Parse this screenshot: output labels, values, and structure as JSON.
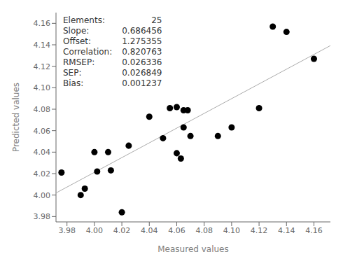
{
  "chart_data": {
    "type": "scatter",
    "xlabel": "Measured values",
    "ylabel": "Predicted values",
    "xlim": [
      3.972,
      4.172
    ],
    "ylim": [
      3.975,
      4.17
    ],
    "xticks": [
      3.98,
      {
        "value": 4.0,
        "label": "4.00"
      },
      4.02,
      4.04,
      4.06,
      4.08,
      {
        "value": 4.1,
        "label": "4.10"
      },
      4.12,
      4.14,
      4.16
    ],
    "yticks": [
      3.98,
      {
        "value": 4.0,
        "label": "4.00"
      },
      4.02,
      4.04,
      4.06,
      4.08,
      {
        "value": 4.1,
        "label": "4.10"
      },
      4.12,
      4.14,
      4.16
    ],
    "grid": false,
    "series": [
      {
        "type": "line",
        "color": "#aaaaaa",
        "x": [
          3.972,
          4.172
        ],
        "values": [
          4.00195823,
          4.139249432
        ]
      },
      {
        "type": "scatter",
        "color": "#000000",
        "x": [
          3.976,
          3.99,
          3.993,
          4.0,
          4.002,
          4.01,
          4.012,
          4.02,
          4.025,
          4.04,
          4.05,
          4.055,
          4.06,
          4.06,
          4.063,
          4.065,
          4.09,
          4.1,
          4.12,
          4.13,
          4.14,
          4.16,
          4.068,
          4.07,
          4.065
        ],
        "values": [
          4.021,
          4.0,
          4.006,
          4.04,
          4.022,
          4.04,
          4.023,
          3.984,
          4.046,
          4.073,
          4.053,
          4.081,
          4.082,
          4.039,
          4.034,
          4.079,
          4.055,
          4.063,
          4.081,
          4.157,
          4.152,
          4.127,
          4.079,
          4.055,
          4.063
        ]
      }
    ],
    "annotations": [
      {
        "label": "Elements:",
        "value": "25"
      },
      {
        "label": "Slope:",
        "value": "0.686456"
      },
      {
        "label": "Offset:",
        "value": "1.275355"
      },
      {
        "label": "Correlation:",
        "value": "0.820763"
      },
      {
        "label": "RMSEP:",
        "value": "0.026336"
      },
      {
        "label": "SEP:",
        "value": "0.026849"
      },
      {
        "label": "Bias:",
        "value": "0.001237"
      }
    ]
  }
}
